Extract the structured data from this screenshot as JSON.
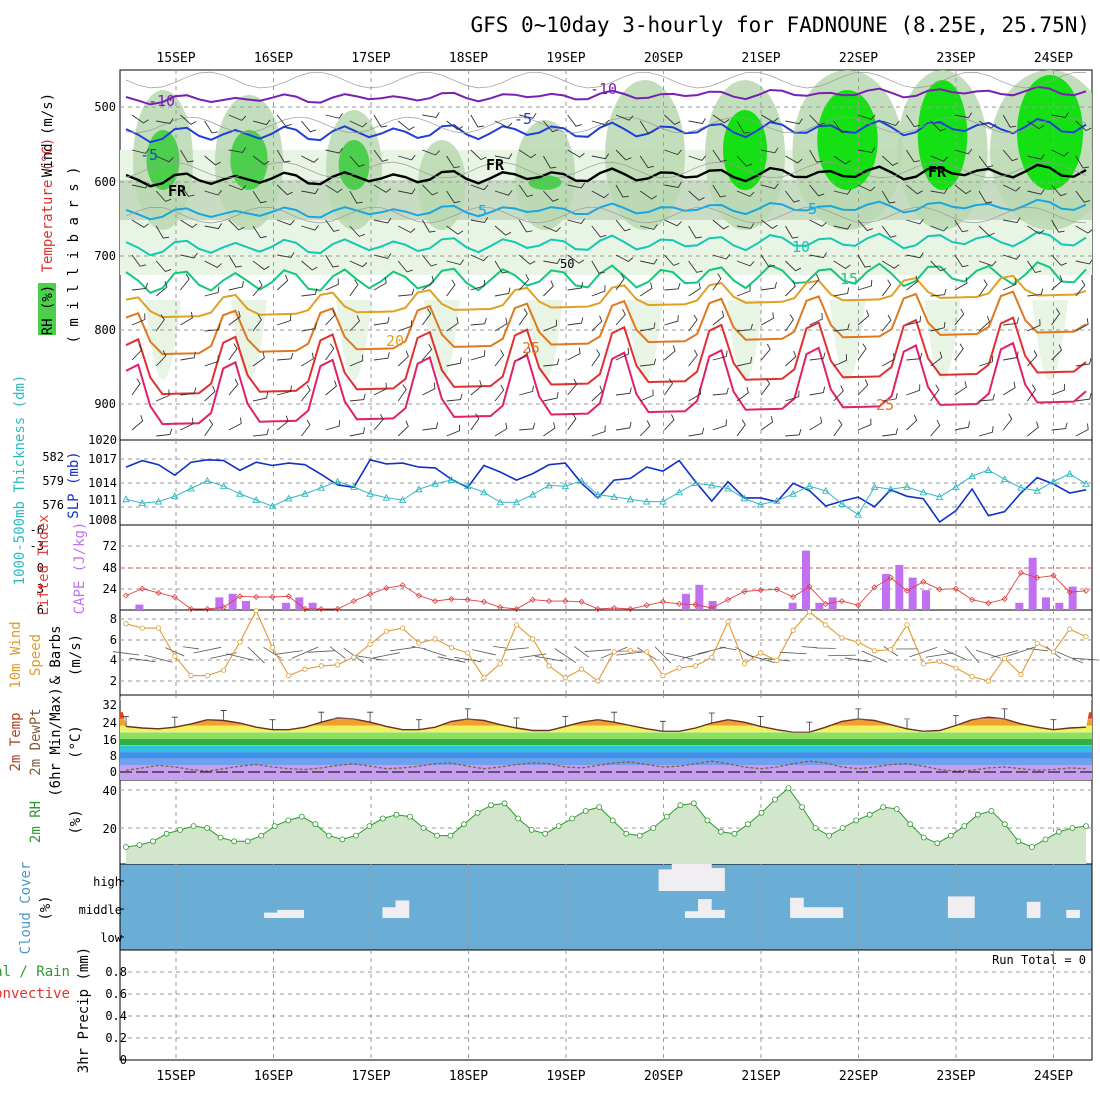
{
  "title": "GFS 0~10day 3-hourly for FADNOUNE (8.25E, 25.75N)",
  "dates": [
    "15SEP",
    "16SEP",
    "17SEP",
    "18SEP",
    "19SEP",
    "20SEP",
    "21SEP",
    "22SEP",
    "23SEP",
    "24SEP"
  ],
  "colors": {
    "grid": "#9a9a9a",
    "frame": "#000000",
    "temp_cold": "#7a1fb4",
    "temp_blue": "#1f3fd8",
    "temp_cyan": "#1aa6e0",
    "temp_teal": "#14c8b4",
    "temp_green": "#14c87a",
    "temp_orange": "#e0a020",
    "temp_dkorange": "#e07820",
    "temp_red": "#e03030",
    "temp_pink": "#e0206a",
    "rh_light": "#e8f4e4",
    "rh_mid": "#b8d8b0",
    "rh_green": "#4ccf4c",
    "rh_bright": "#14e014",
    "slp": "#1030c8",
    "thick": "#30b8c0",
    "cape": "#c070f0",
    "li": "#e04040",
    "wind": "#e09a30",
    "t2m": "#b04020",
    "dew": "#806040",
    "rh2m": "#2e9a2e",
    "cloud_bg": "#6aaed6",
    "cloud_fill": "#f0eef0"
  },
  "panels": {
    "upper": {
      "y_label_wind": "Wind (m/s)",
      "y_label_temp": "Temperature (°C)",
      "y_label_mb": "( m i l l i b a r s )",
      "y_label_rh": "RH (%)",
      "levels": [
        "500",
        "600",
        "700",
        "800",
        "900"
      ]
    },
    "slp": {
      "y_label_thick": "1000-500mb Thickness (dm)",
      "y_label_slp": "SLP (mb)",
      "thick_ticks": [
        "582",
        "579",
        "576"
      ],
      "slp_ticks": [
        "1020",
        "1017",
        "1014",
        "1011",
        "1008"
      ]
    },
    "cape": {
      "y_label_li": "Lifted Index",
      "y_label_cape": "CAPE (J/kg)",
      "li_ticks": [
        "-6",
        "-3",
        "0",
        "3",
        "6"
      ],
      "cape_ticks": [
        "72",
        "48",
        "24"
      ]
    },
    "wind10": {
      "y_label_a": "10m Wind",
      "y_label_b": "Speed",
      "y_label_c": "& Barbs",
      "y_label_d": "(m/s)",
      "ticks": [
        "8",
        "6",
        "4",
        "2"
      ]
    },
    "t2m": {
      "y_label_a": "2m Temp",
      "y_label_b": "2m DewPt",
      "y_label_c": "(6hr Min/Max)",
      "y_label_d": "(°C)",
      "ticks": [
        "32",
        "24",
        "16",
        "8",
        "0"
      ]
    },
    "rh2m": {
      "y_label_a": "2m RH",
      "y_label_b": "(%)",
      "ticks": [
        "40",
        "20"
      ]
    },
    "cloud": {
      "y_label_a": "Cloud Cover",
      "y_label_b": "(%)",
      "levels": [
        "high",
        "middle",
        "low"
      ]
    },
    "precip": {
      "y_label_a": "Total / Rain",
      "y_label_b": "Convective",
      "y_label_c": "3hr Precip (mm)",
      "ticks": [
        "0.8",
        "0.6",
        "0.4",
        "0.2",
        "0"
      ],
      "run_total": "Run Total = 0"
    }
  },
  "contour_labels": {
    "neg10_left": "-10",
    "neg10_mid": "-10",
    "neg5_left": "-5",
    "neg5_mid": "-5",
    "fr": "FR",
    "p5a": "5",
    "p5b": "5",
    "p10": "10",
    "p15": "15",
    "p20": "20",
    "p25a": "25",
    "p25b": "25",
    "rh50": "50"
  },
  "chart_data": {
    "type": "line",
    "times": [
      "15SEP",
      "16SEP",
      "17SEP",
      "18SEP",
      "19SEP",
      "20SEP",
      "21SEP",
      "22SEP",
      "23SEP",
      "24SEP"
    ],
    "slp_mb": [
      1016.0,
      1016.8,
      1016.3,
      1015.0,
      1016.6,
      1016.9,
      1016.8,
      1015.6,
      1016.6,
      1016.2,
      1016.5,
      1016.3,
      1015.1,
      1013.8,
      1013.5,
      1016.9,
      1016.4,
      1016.5,
      1016.0,
      1015.9,
      1014.5,
      1013.5,
      1016.2,
      1015.4,
      1014.4,
      1015.2,
      1016.3,
      1016.5,
      1014.0,
      1012.2,
      1014.4,
      1014.6,
      1016.0,
      1015.5,
      1016.8,
      1014.2,
      1011.8,
      1014.2,
      1012.2,
      1012.2,
      1011.7,
      1014.0,
      1013.1,
      1011.2,
      1011.8,
      1012.3,
      1011.1,
      1013.2,
      1012.4,
      1012.1,
      1009.0,
      1010.6,
      1013.3,
      1010.0,
      1010.5,
      1012.8,
      1014.7,
      1013.9,
      1012.8,
      1013.2
    ],
    "thickness_dm": [
      576.5,
      576.0,
      576.2,
      576.9,
      577.9,
      578.9,
      578.2,
      577.2,
      576.4,
      575.6,
      576.6,
      577.2,
      578.0,
      578.8,
      578.1,
      577.2,
      576.7,
      576.4,
      577.8,
      578.5,
      579.0,
      578.2,
      577.4,
      576.1,
      576.1,
      577.1,
      578.3,
      578.2,
      578.9,
      577.1,
      576.8,
      576.5,
      576.2,
      576.2,
      577.4,
      578.6,
      578.3,
      577.9,
      576.6,
      575.8,
      576.3,
      577.2,
      578.2,
      577.6,
      575.9,
      574.5,
      578.1,
      577.8,
      578.1,
      577.4,
      576.8,
      578.1,
      579.5,
      580.3,
      579.1,
      578.0,
      577.6,
      578.8,
      579.8,
      578.5
    ],
    "lifted_index": [
      4.0,
      3.0,
      3.6,
      4.2,
      6.6,
      6.2,
      5.7,
      4.1,
      4.2,
      4.2,
      4.1,
      6.7,
      7.2,
      6.1,
      4.8,
      3.8,
      2.9,
      2.5,
      4.0,
      4.8,
      4.5,
      4.6,
      4.9,
      5.7,
      6.9,
      4.6,
      4.8,
      4.8,
      4.9,
      6.0,
      5.8,
      6.4,
      5.4,
      4.9,
      5.2,
      5.3,
      5.8,
      4.6,
      3.4,
      3.2,
      3.1,
      4.2,
      2.7,
      5.2,
      4.8,
      5.4,
      2.8,
      1.4,
      3.3,
      2.0,
      3.1,
      3.0,
      4.6,
      5.1,
      4.5,
      0.7,
      1.4,
      1.1,
      3.5,
      3.3
    ],
    "cape_jkg": [
      0,
      6,
      0,
      0,
      0,
      0,
      0,
      14,
      18,
      10,
      0,
      0,
      8,
      14,
      8,
      0,
      0,
      0,
      0,
      0,
      0,
      0,
      0,
      0,
      0,
      0,
      0,
      0,
      0,
      0,
      0,
      0,
      0,
      0,
      0,
      0,
      0,
      0,
      0,
      0,
      0,
      0,
      18,
      28,
      10,
      0,
      0,
      0,
      0,
      0,
      8,
      66,
      8,
      14,
      0,
      0,
      0,
      40,
      50,
      36,
      22,
      0,
      0,
      0,
      0,
      0,
      0,
      8,
      58,
      14,
      8,
      26,
      0
    ],
    "wind10m_ms": [
      7.3,
      6.9,
      6.9,
      4.3,
      2.5,
      2.5,
      3.0,
      5.6,
      8.5,
      5.1,
      2.5,
      3.1,
      3.4,
      3.5,
      4.2,
      5.4,
      6.6,
      6.9,
      5.5,
      5.9,
      5.1,
      4.6,
      2.3,
      3.6,
      7.2,
      5.9,
      3.4,
      2.3,
      3.1,
      2.0,
      4.7,
      4.8,
      4.7,
      2.5,
      3.2,
      3.4,
      4.2,
      7.5,
      3.6,
      4.6,
      3.9,
      6.7,
      8.4,
      7.2,
      6.0,
      5.6,
      4.8,
      4.9,
      7.2,
      3.6,
      3.8,
      3.2,
      2.4,
      2.0,
      4.1,
      2.6,
      5.5,
      4.7,
      6.8,
      6.1
    ],
    "t2m_c": [
      27.5,
      26.5,
      26.0,
      27.0,
      29.0,
      31.5,
      31.0,
      29.5,
      27.0,
      25.5,
      25.5,
      27.0,
      30.0,
      32.5,
      32.0,
      30.0,
      27.5,
      25.5,
      25.5,
      27.0,
      30.5,
      32.0,
      31.0,
      28.5,
      26.5,
      25.0,
      25.0,
      27.5,
      30.0,
      31.5,
      30.0,
      28.0,
      26.0,
      24.5,
      24.5,
      26.5,
      29.5,
      31.5,
      30.0,
      27.5,
      25.5,
      24.0,
      24.0,
      27.0,
      30.5,
      32.0,
      31.0,
      28.5,
      26.0,
      24.5,
      25.0,
      28.0,
      31.5,
      33.0,
      32.0,
      29.0,
      27.0,
      25.5,
      26.5,
      27.0
    ],
    "dew2m_c": [
      1.0,
      2.5,
      4.0,
      3.0,
      1.5,
      0.5,
      2.0,
      3.5,
      4.5,
      3.0,
      2.0,
      1.5,
      2.5,
      4.0,
      5.0,
      3.5,
      2.0,
      2.5,
      3.5,
      5.0,
      5.5,
      3.5,
      2.0,
      3.0,
      4.5,
      5.5,
      5.0,
      3.0,
      2.5,
      4.0,
      5.5,
      6.0,
      4.5,
      3.0,
      3.5,
      5.0,
      6.5,
      5.0,
      3.0,
      2.0,
      3.0,
      5.0,
      6.5,
      5.5,
      3.0,
      2.0,
      3.0,
      4.5,
      5.0,
      3.5,
      1.5,
      0.5,
      1.0,
      2.5,
      3.0,
      2.0,
      1.0,
      1.5,
      2.5,
      2.0
    ],
    "rh2m_pct": [
      10,
      11,
      13,
      17,
      19,
      21,
      20,
      15,
      13,
      13,
      16,
      21,
      24,
      26,
      22,
      16,
      14,
      16,
      21,
      25,
      27,
      26,
      20,
      16,
      16,
      22,
      28,
      32,
      33,
      25,
      19,
      17,
      21,
      25,
      29,
      31,
      24,
      17,
      16,
      20,
      26,
      32,
      33,
      24,
      18,
      17,
      22,
      28,
      35,
      41,
      31,
      20,
      16,
      20,
      24,
      27,
      31,
      30,
      22,
      15,
      12,
      16,
      21,
      27,
      29,
      22,
      13,
      10,
      14,
      18,
      20,
      21
    ],
    "cloud_mid_pct": [
      0,
      0,
      0,
      0,
      0,
      0,
      0,
      0,
      0,
      0,
      0,
      20,
      30,
      30,
      0,
      0,
      0,
      0,
      0,
      0,
      40,
      65,
      0,
      0,
      0,
      0,
      0,
      0,
      0,
      0,
      0,
      0,
      0,
      0,
      0,
      0,
      0,
      0,
      0,
      0,
      0,
      0,
      0,
      25,
      70,
      30,
      0,
      0,
      0,
      0,
      0,
      75,
      40,
      40,
      40,
      0,
      0,
      0,
      0,
      0,
      0,
      0,
      0,
      80,
      80,
      0,
      0,
      0,
      0,
      60,
      0,
      0,
      30,
      0
    ],
    "cloud_high_pct": [
      0,
      0,
      0,
      0,
      0,
      0,
      0,
      0,
      0,
      0,
      0,
      0,
      0,
      0,
      0,
      0,
      0,
      0,
      0,
      0,
      0,
      0,
      0,
      0,
      0,
      0,
      0,
      0,
      0,
      0,
      0,
      0,
      0,
      0,
      0,
      0,
      0,
      0,
      0,
      0,
      0,
      80,
      100,
      100,
      100,
      85,
      0,
      0,
      0,
      0,
      0,
      0,
      0,
      0,
      0,
      0,
      0,
      0,
      0,
      0,
      0,
      0,
      0,
      0,
      0,
      0,
      0,
      0,
      0,
      0,
      0,
      0,
      0,
      0
    ],
    "precip_mm": [
      0,
      0,
      0,
      0,
      0,
      0,
      0,
      0,
      0,
      0
    ],
    "run_total_mm": 0
  }
}
